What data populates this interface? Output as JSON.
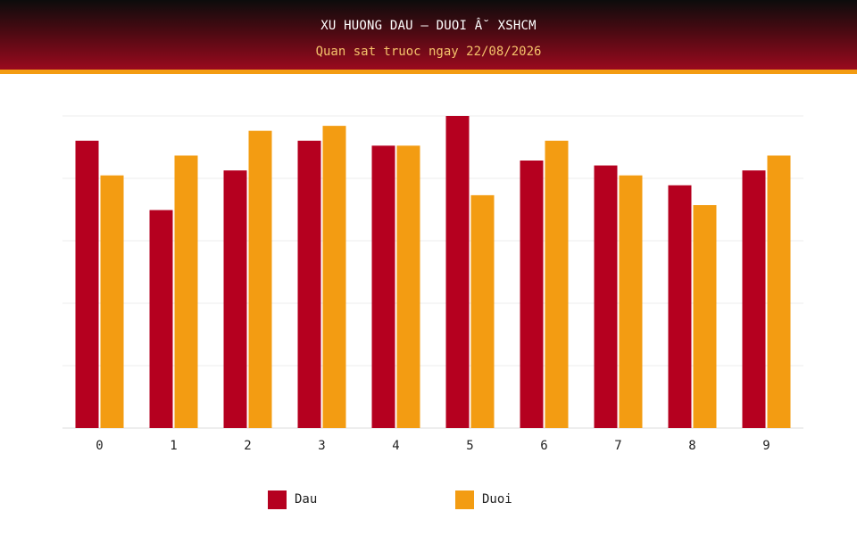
{
  "header": {
    "title": "XU HUONG DAU – DUOI Â˘ XSHCM",
    "subtitle": "Quan sat truoc ngay 22/08/2026"
  },
  "colors": {
    "dau": "#b5001f",
    "duoi": "#f39c12"
  },
  "legend": {
    "dau_label": "Dau",
    "duoi_label": "Duoi"
  },
  "chart_data": {
    "type": "bar",
    "categories": [
      "0",
      "1",
      "2",
      "3",
      "4",
      "5",
      "6",
      "7",
      "8",
      "9"
    ],
    "series": [
      {
        "name": "Dau",
        "values": [
          58,
          44,
          52,
          58,
          57,
          63,
          54,
          53,
          49,
          52
        ]
      },
      {
        "name": "Duoi",
        "values": [
          51,
          55,
          60,
          61,
          57,
          47,
          58,
          51,
          45,
          55
        ]
      }
    ],
    "ylim": [
      0,
      63
    ],
    "grid": true,
    "legend_position": "bottom"
  }
}
